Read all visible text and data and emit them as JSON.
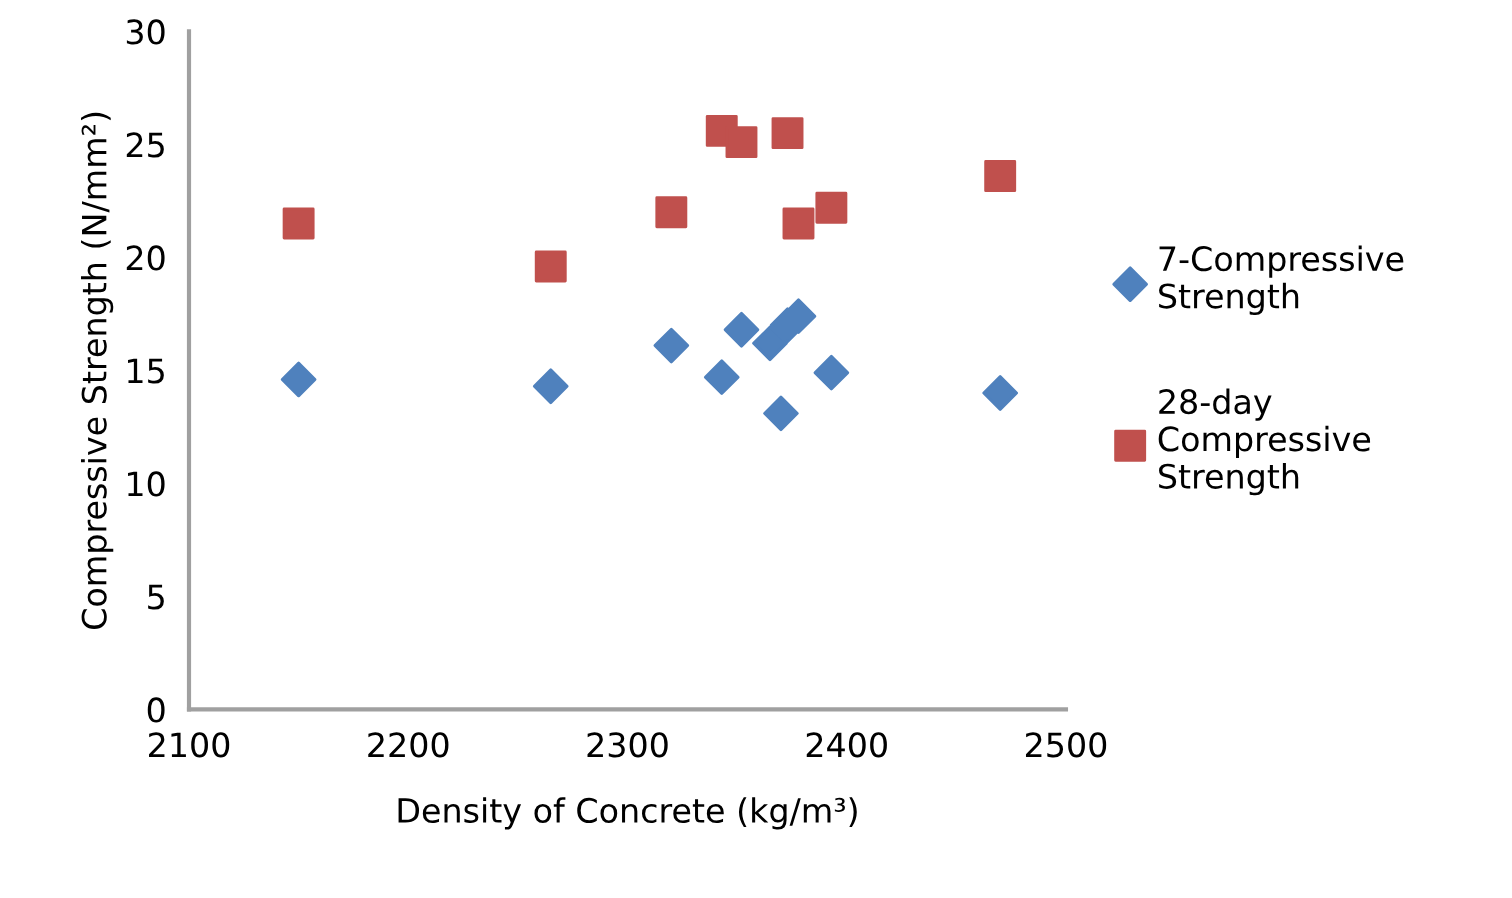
{
  "chart_data": {
    "type": "scatter",
    "xlabel": "Density of Concrete (kg/m³)",
    "ylabel": "Compressive Strength (N/mm²)",
    "xlim": [
      2100,
      2500
    ],
    "xticks": [
      2100,
      2200,
      2300,
      2400,
      2500
    ],
    "ylim": [
      0,
      30
    ],
    "yticks": [
      0,
      5,
      10,
      15,
      20,
      25,
      30
    ],
    "grid": false,
    "legend": "right",
    "series": [
      {
        "name": "7-Compressive Strength",
        "color": "#4f81bd",
        "marker": "diamond",
        "x": [
          2150,
          2265,
          2320,
          2343,
          2352,
          2365,
          2370,
          2373,
          2378,
          2393,
          2470
        ],
        "values": [
          14.6,
          14.3,
          16.1,
          14.7,
          16.8,
          16.2,
          13.1,
          17.0,
          17.4,
          14.9,
          14.0
        ]
      },
      {
        "name": "28-day Compressive Strength",
        "color": "#c0504d",
        "marker": "square",
        "x": [
          2150,
          2265,
          2320,
          2343,
          2352,
          2365,
          2370,
          2373,
          2378,
          2393,
          2470
        ],
        "values": [
          21.5,
          19.6,
          22.0,
          25.6,
          25.1,
          null,
          null,
          25.5,
          21.5,
          22.2,
          23.6
        ]
      }
    ]
  }
}
